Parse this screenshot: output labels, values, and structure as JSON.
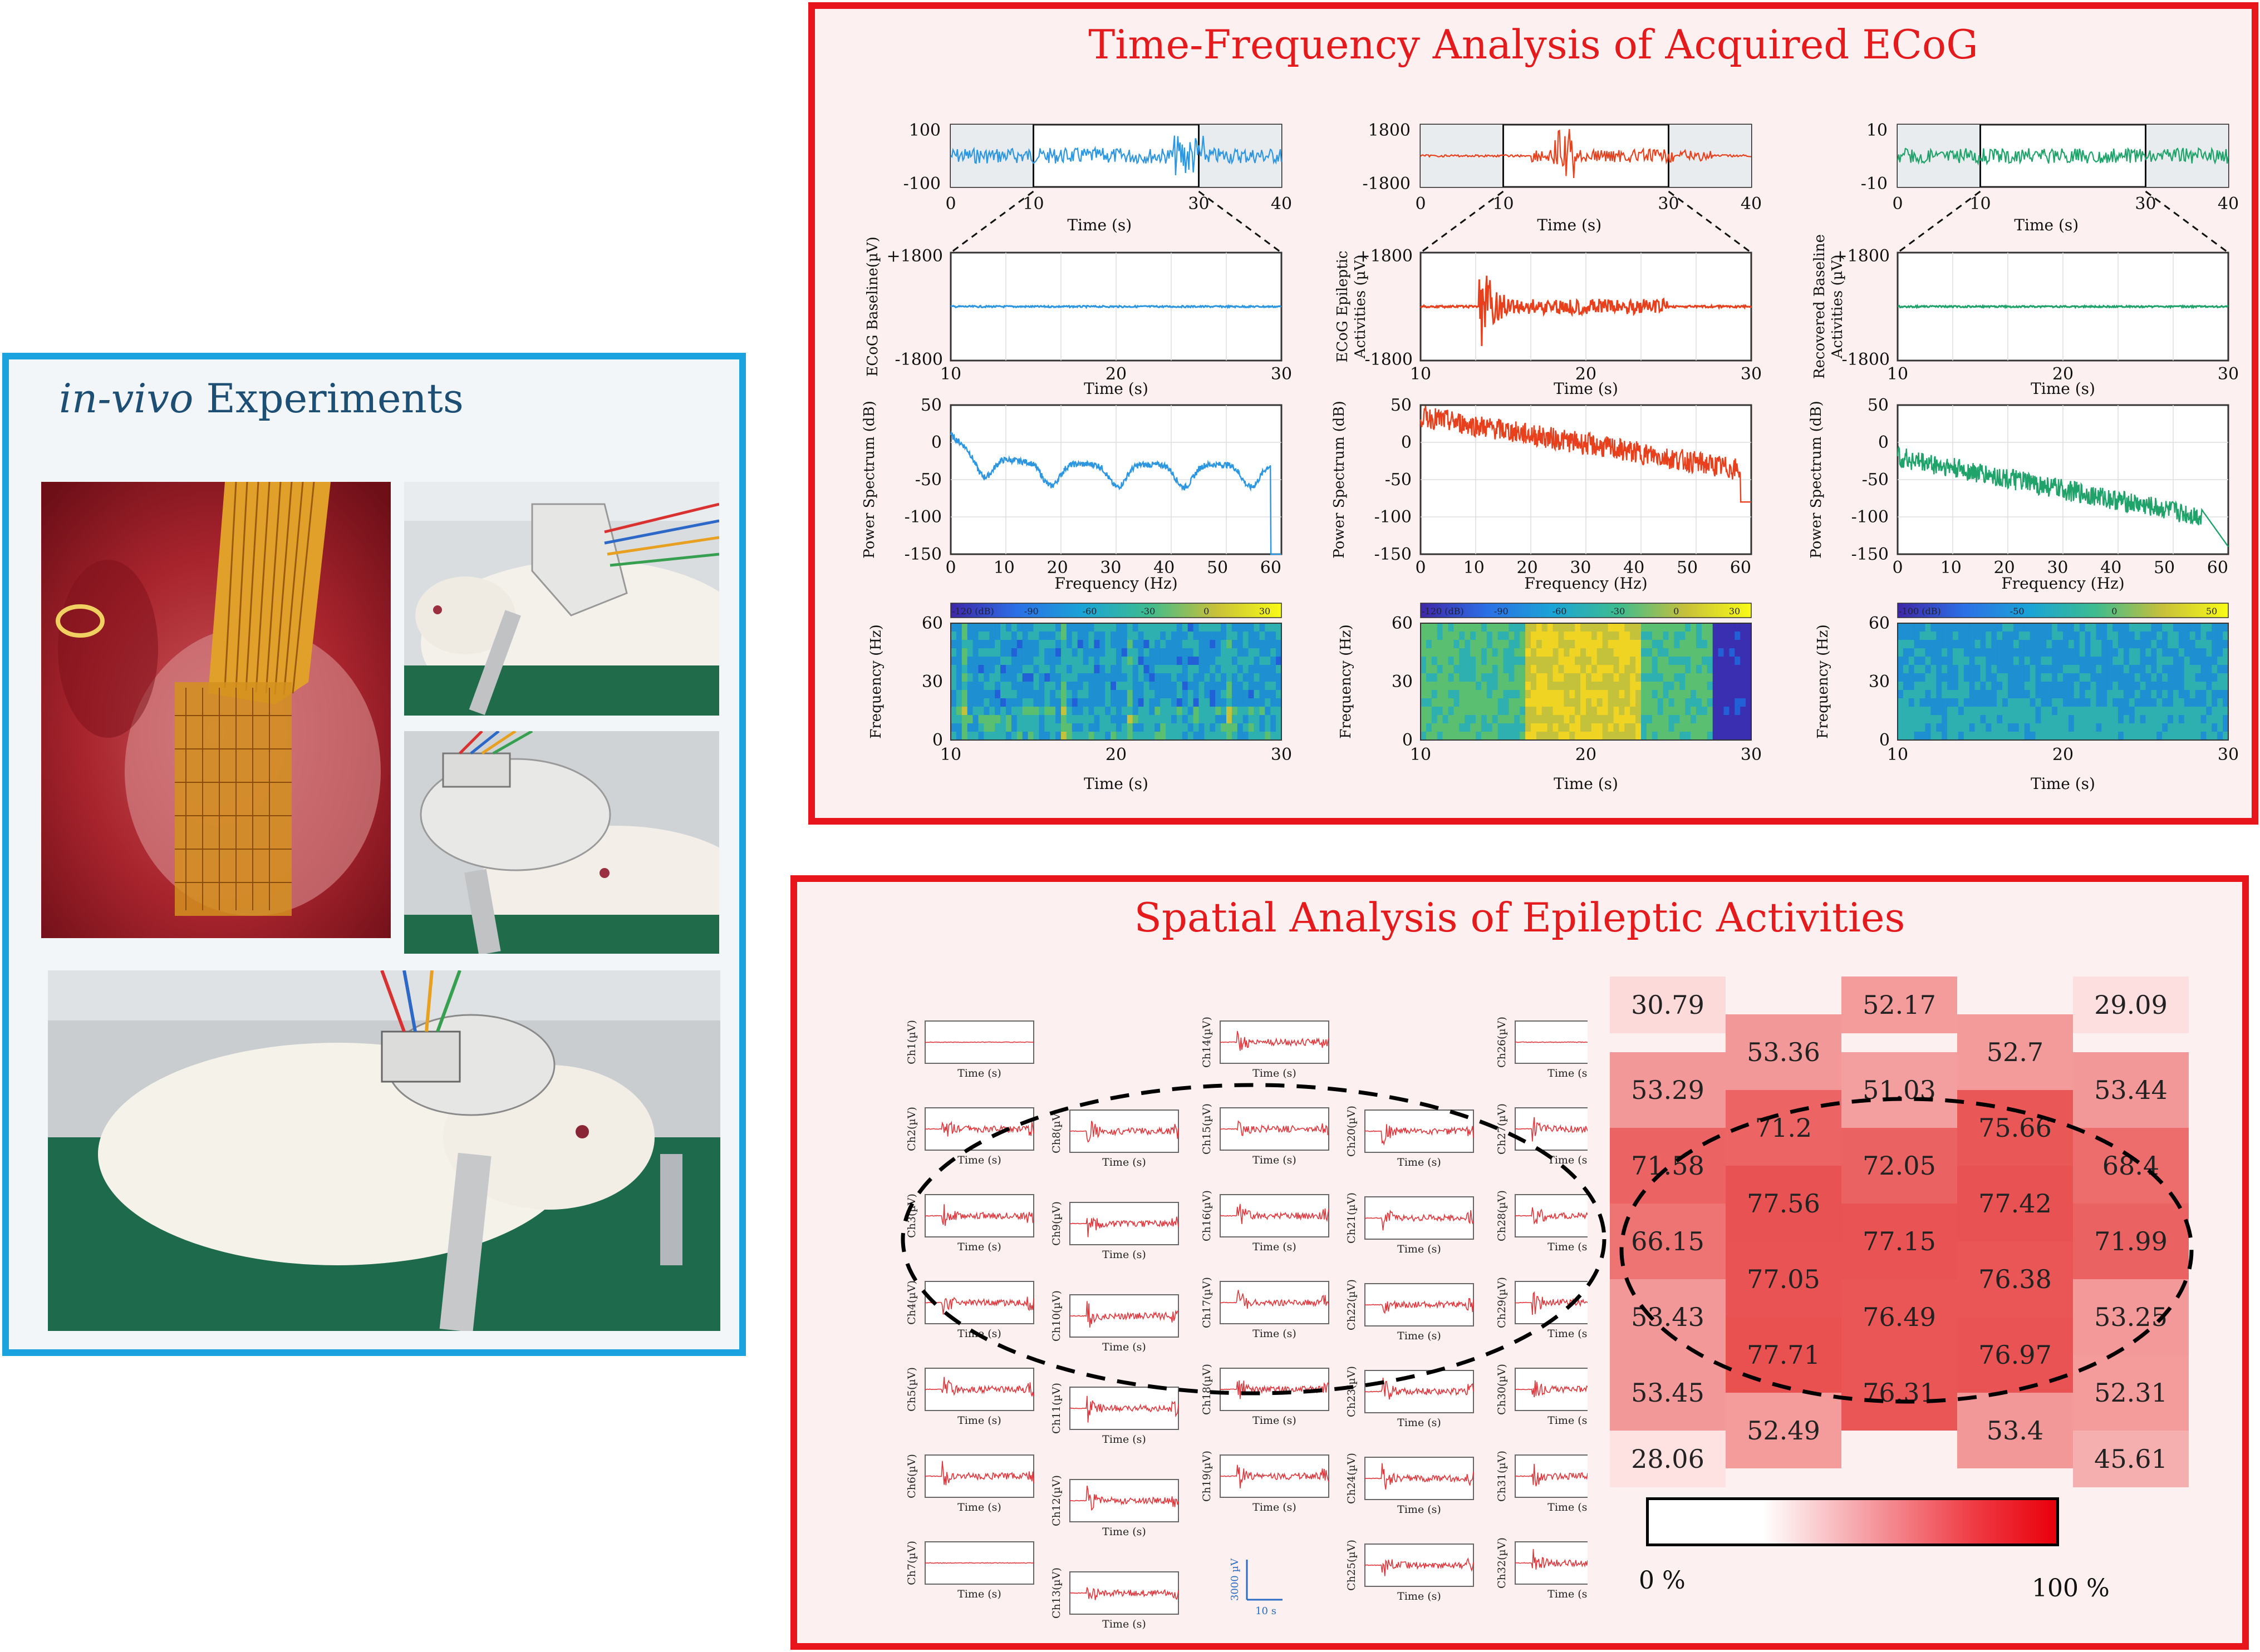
{
  "invivo": {
    "title_italic": "in-vivo",
    "title_rest": " Experiments"
  },
  "tf": {
    "title": "Time-Frequency Analysis of Acquired ECoG",
    "columns": [
      {
        "color": "#2d96e0",
        "overview_yticks": [
          "100",
          "-100"
        ],
        "ts_ylabel": "ECoG  Baseline(µV)",
        "ylabel_line2": "",
        "cbar_ticks": [
          "-120 (dB)",
          "-90",
          "-60",
          "-30",
          "0",
          "30"
        ]
      },
      {
        "color": "#e8401c",
        "overview_yticks": [
          "1800",
          "-1800"
        ],
        "ts_ylabel": "ECoG  Epileptic",
        "ylabel_line2": "Activities (µV)",
        "cbar_ticks": [
          "-120 (dB)",
          "-90",
          "-60",
          "-30",
          "0",
          "30"
        ]
      },
      {
        "color": "#1fa36a",
        "overview_yticks": [
          "10",
          "-10"
        ],
        "ts_ylabel": "Recovered Baseline",
        "ylabel_line2": "Activities (µV)",
        "cbar_ticks": [
          "-100 (dB)",
          "-50",
          "0",
          "50"
        ]
      }
    ],
    "overview_xticks": [
      "0",
      "10",
      "30",
      "40"
    ],
    "overview_xlabel": "Time (s)",
    "ts_yticks": [
      "+1800",
      "-1800"
    ],
    "ts_xticks": [
      "10",
      "20",
      "30"
    ],
    "ts_xlabel": "Time (s)",
    "psd_ylabel": "Power Spectrum  (dB)",
    "psd_yticks": [
      "50",
      "0",
      "-50",
      "-100",
      "-150"
    ],
    "psd_xticks": [
      "0",
      "10",
      "20",
      "30",
      "40",
      "50",
      "60"
    ],
    "psd_xlabel": "Frequency (Hz)",
    "spec_ylabel": "Frequency (Hz)",
    "spec_yticks": [
      "60",
      "30",
      "0"
    ],
    "spec_xticks": [
      "10",
      "20",
      "30"
    ],
    "spec_xlabel": "Time (s)"
  },
  "spatial": {
    "title": "Spatial Analysis of Epileptic Activities",
    "channel_ylabel_unit": "(µV)",
    "channel_xlabel": "Time (s)",
    "channels": [
      {
        "col": 0,
        "labels": [
          "Ch1",
          "Ch2",
          "Ch3",
          "Ch4",
          "Ch5",
          "Ch6",
          "Ch7"
        ]
      },
      {
        "col": 1,
        "labels": [
          "Ch8",
          "Ch9",
          "Ch10",
          "Ch11",
          "Ch12",
          "Ch13"
        ]
      },
      {
        "col": 2,
        "labels": [
          "Ch14",
          "Ch15",
          "Ch16",
          "Ch17",
          "Ch18",
          "Ch19"
        ]
      },
      {
        "col": 3,
        "labels": [
          "Ch20",
          "Ch21",
          "Ch22",
          "Ch23",
          "Ch24",
          "Ch25"
        ]
      },
      {
        "col": 4,
        "labels": [
          "Ch26",
          "Ch27",
          "Ch28",
          "Ch29",
          "Ch30",
          "Ch31",
          "Ch32"
        ]
      }
    ],
    "scalebar_v": "3000 µV",
    "scalebar_h": "10 s",
    "heatmap": {
      "values": [
        [
          "30.79",
          null,
          "52.17",
          null,
          "29.09"
        ],
        [
          null,
          "53.36",
          null,
          "52.7",
          null
        ],
        [
          "53.29",
          null,
          "51.03",
          null,
          "53.44"
        ],
        [
          null,
          "71.2",
          null,
          "75.66",
          null
        ],
        [
          "71.58",
          null,
          "72.05",
          null,
          "68.4"
        ],
        [
          null,
          "77.56",
          null,
          "77.42",
          null
        ],
        [
          "66.15",
          null,
          "77.15",
          null,
          "71.99"
        ],
        [
          null,
          "77.05",
          null,
          "76.38",
          null
        ],
        [
          "53.43",
          null,
          "76.49",
          null,
          "53.25"
        ],
        [
          null,
          "77.71",
          null,
          "76.97",
          null
        ],
        [
          "53.45",
          null,
          "76.31",
          null,
          "52.31"
        ],
        [
          null,
          "52.49",
          null,
          "53.4",
          null
        ],
        [
          "28.06",
          null,
          null,
          null,
          "45.61"
        ]
      ],
      "colorbar_min": "0 %",
      "colorbar_max": "100 %"
    }
  }
}
